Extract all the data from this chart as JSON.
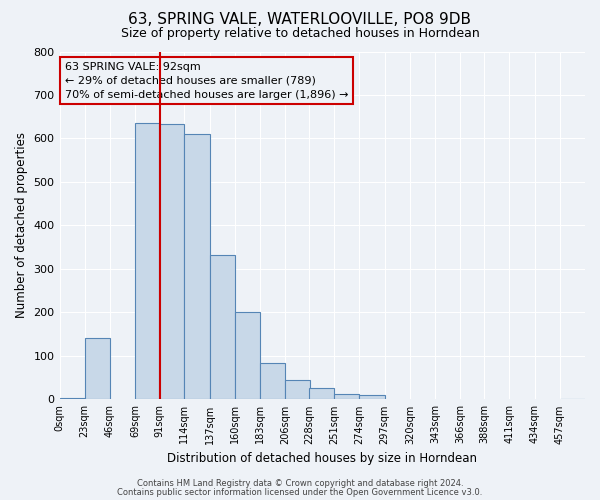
{
  "title": "63, SPRING VALE, WATERLOOVILLE, PO8 9DB",
  "subtitle": "Size of property relative to detached houses in Horndean",
  "xlabel": "Distribution of detached houses by size in Horndean",
  "ylabel": "Number of detached properties",
  "bin_labels": [
    "0sqm",
    "23sqm",
    "46sqm",
    "69sqm",
    "91sqm",
    "114sqm",
    "137sqm",
    "160sqm",
    "183sqm",
    "206sqm",
    "228sqm",
    "251sqm",
    "274sqm",
    "297sqm",
    "320sqm",
    "343sqm",
    "366sqm",
    "388sqm",
    "411sqm",
    "434sqm",
    "457sqm"
  ],
  "bin_edges": [
    0,
    23,
    46,
    69,
    91,
    114,
    137,
    160,
    183,
    206,
    228,
    251,
    274,
    297,
    320,
    343,
    366,
    388,
    411,
    434,
    457
  ],
  "bar_heights": [
    3,
    142,
    0,
    635,
    633,
    610,
    332,
    200,
    84,
    45,
    26,
    12,
    11,
    0,
    0,
    0,
    0,
    0,
    0,
    0,
    2
  ],
  "bar_color": "#c8d8e8",
  "bar_edge_color": "#5585b5",
  "property_value": 92,
  "vline_color": "#cc0000",
  "ylim": [
    0,
    800
  ],
  "yticks": [
    0,
    100,
    200,
    300,
    400,
    500,
    600,
    700,
    800
  ],
  "annotation_box_text": "63 SPRING VALE: 92sqm\n← 29% of detached houses are smaller (789)\n70% of semi-detached houses are larger (1,896) →",
  "annotation_box_color": "#cc0000",
  "footer_line1": "Contains HM Land Registry data © Crown copyright and database right 2024.",
  "footer_line2": "Contains public sector information licensed under the Open Government Licence v3.0.",
  "bg_color": "#eef2f7",
  "grid_color": "#ffffff",
  "title_fontsize": 11,
  "subtitle_fontsize": 9
}
